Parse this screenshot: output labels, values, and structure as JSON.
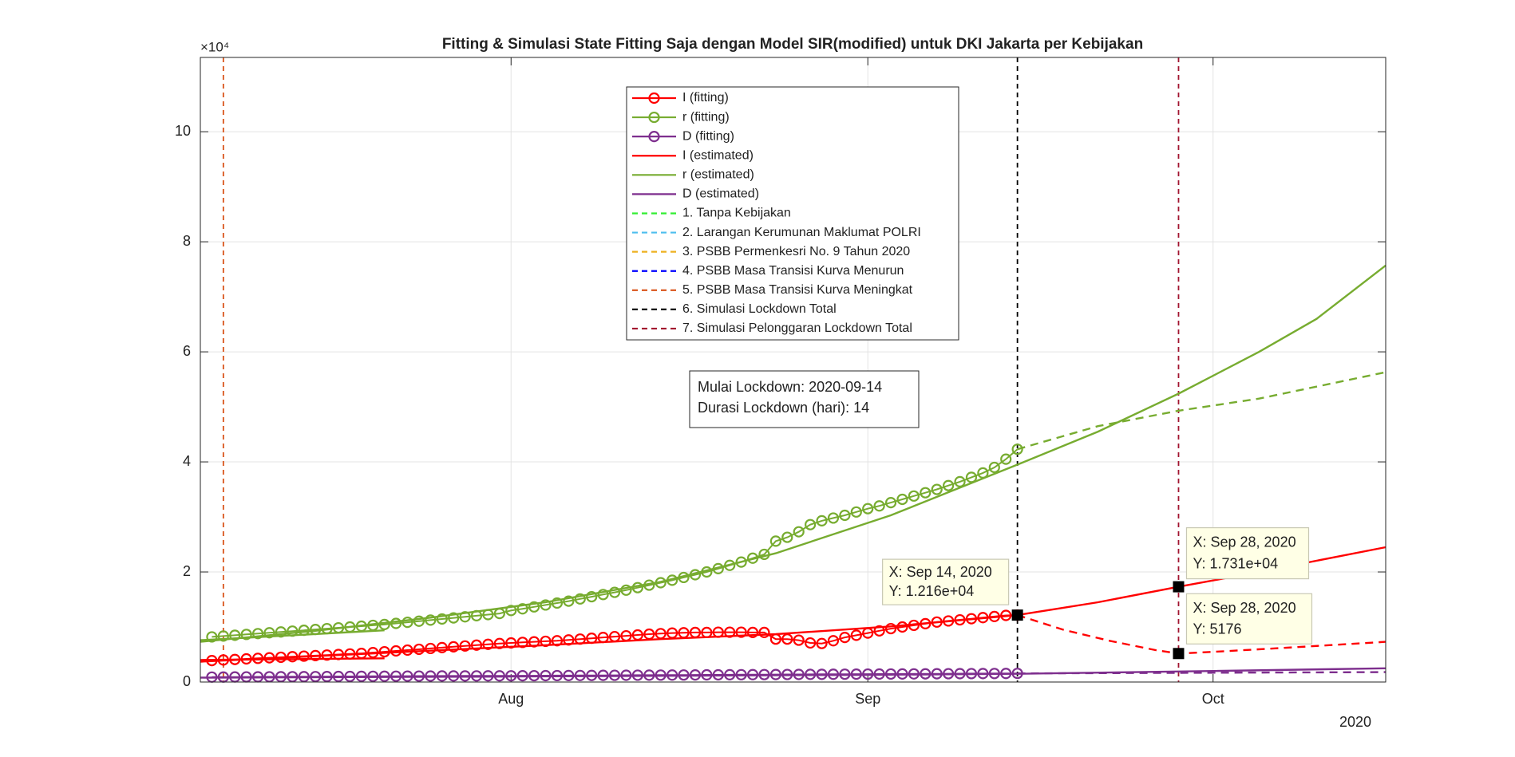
{
  "chart_data": {
    "type": "line",
    "title": "Fitting & Simulasi State Fitting Saja dengan Model SIR(modified) untuk DKI Jakarta per Kebijakan",
    "xlim": [
      "2020-07-05",
      "2020-10-16"
    ],
    "xticks": [
      {
        "value": "2020-08-01",
        "label": "Aug"
      },
      {
        "value": "2020-09-01",
        "label": "Sep"
      },
      {
        "value": "2020-10-01",
        "label": "Oct"
      }
    ],
    "x_secondary_label": "2020",
    "ylim": [
      0,
      113500
    ],
    "yticks": [
      0,
      {
        "value": 20000,
        "label": "2"
      },
      {
        "value": 40000,
        "label": "4"
      },
      {
        "value": 60000,
        "label": "6"
      },
      {
        "value": 80000,
        "label": "8"
      },
      {
        "value": 100000,
        "label": "10"
      }
    ],
    "y_exponent_label": "×10⁴",
    "grid": true,
    "legend_position": "top",
    "x": [
      "2020-07-06",
      "2020-07-07",
      "2020-07-08",
      "2020-07-09",
      "2020-07-10",
      "2020-07-11",
      "2020-07-12",
      "2020-07-13",
      "2020-07-14",
      "2020-07-15",
      "2020-07-16",
      "2020-07-17",
      "2020-07-18",
      "2020-07-19",
      "2020-07-20",
      "2020-07-21",
      "2020-07-22",
      "2020-07-23",
      "2020-07-24",
      "2020-07-25",
      "2020-07-26",
      "2020-07-27",
      "2020-07-28",
      "2020-07-29",
      "2020-07-30",
      "2020-07-31",
      "2020-08-01",
      "2020-08-02",
      "2020-08-03",
      "2020-08-04",
      "2020-08-05",
      "2020-08-06",
      "2020-08-07",
      "2020-08-08",
      "2020-08-09",
      "2020-08-10",
      "2020-08-11",
      "2020-08-12",
      "2020-08-13",
      "2020-08-14",
      "2020-08-15",
      "2020-08-16",
      "2020-08-17",
      "2020-08-18",
      "2020-08-19",
      "2020-08-20",
      "2020-08-21",
      "2020-08-22",
      "2020-08-23",
      "2020-08-24",
      "2020-08-25",
      "2020-08-26",
      "2020-08-27",
      "2020-08-28",
      "2020-08-29",
      "2020-08-30",
      "2020-08-31",
      "2020-09-01",
      "2020-09-02",
      "2020-09-03",
      "2020-09-04",
      "2020-09-05",
      "2020-09-06",
      "2020-09-07",
      "2020-09-08",
      "2020-09-09",
      "2020-09-10",
      "2020-09-11",
      "2020-09-12",
      "2020-09-13",
      "2020-09-14"
    ],
    "series": [
      {
        "name": "I (fitting)",
        "color": "#ff0000",
        "style": "marker",
        "values": [
          3900,
          4000,
          4100,
          4200,
          4300,
          4400,
          4500,
          4600,
          4700,
          4800,
          4900,
          5000,
          5100,
          5200,
          5350,
          5500,
          5650,
          5800,
          5950,
          6100,
          6250,
          6400,
          6550,
          6700,
          6850,
          7000,
          7100,
          7200,
          7300,
          7400,
          7500,
          7650,
          7800,
          7950,
          8100,
          8250,
          8400,
          8550,
          8700,
          8800,
          8900,
          8950,
          9000,
          9000,
          9050,
          9050,
          9050,
          9000,
          9000,
          7800,
          7800,
          7600,
          7100,
          7000,
          7500,
          8100,
          8500,
          8900,
          9300,
          9700,
          10000,
          10300,
          10600,
          10900,
          11100,
          11300,
          11500,
          11700,
          11900,
          12100,
          12160
        ]
      },
      {
        "name": "r (fitting)",
        "color": "#77ac30",
        "style": "marker",
        "values": [
          8200,
          8350,
          8500,
          8650,
          8800,
          8950,
          9100,
          9250,
          9400,
          9550,
          9700,
          9850,
          10000,
          10150,
          10300,
          10450,
          10650,
          10850,
          11050,
          11250,
          11450,
          11650,
          11850,
          12050,
          12250,
          12450,
          13000,
          13300,
          13650,
          14000,
          14350,
          14700,
          15100,
          15500,
          15900,
          16300,
          16700,
          17150,
          17600,
          18050,
          18500,
          19000,
          19500,
          20000,
          20600,
          21200,
          21800,
          22500,
          23200,
          25600,
          26300,
          27300,
          28600,
          29300,
          29800,
          30300,
          30900,
          31500,
          32000,
          32600,
          33200,
          33800,
          34400,
          35000,
          35700,
          36400,
          37200,
          38000,
          39000,
          40500,
          42300
        ]
      },
      {
        "name": "D (fitting)",
        "color": "#7e2f8e",
        "style": "marker",
        "values": [
          900,
          910,
          920,
          930,
          940,
          950,
          960,
          970,
          980,
          990,
          1000,
          1010,
          1020,
          1030,
          1040,
          1050,
          1060,
          1070,
          1080,
          1090,
          1100,
          1105,
          1110,
          1115,
          1120,
          1125,
          1130,
          1140,
          1150,
          1160,
          1170,
          1180,
          1190,
          1200,
          1210,
          1220,
          1230,
          1240,
          1250,
          1260,
          1270,
          1280,
          1290,
          1300,
          1310,
          1320,
          1330,
          1340,
          1350,
          1360,
          1370,
          1380,
          1390,
          1400,
          1410,
          1420,
          1430,
          1440,
          1450,
          1460,
          1470,
          1480,
          1490,
          1500,
          1510,
          1520,
          1530,
          1540,
          1550,
          1560,
          1570
        ]
      },
      {
        "name": "I (estimated)",
        "color": "#ff0000",
        "style": "solid",
        "pieces": [
          {
            "dashed": false,
            "x": [
              "2020-07-05",
              "2020-07-15",
              "2020-07-25",
              "2020-08-04",
              "2020-08-14",
              "2020-08-24",
              "2020-09-03",
              "2020-09-14",
              "2020-09-21",
              "2020-09-28",
              "2020-10-05",
              "2020-10-16"
            ],
            "values": [
              3700,
              4700,
              5700,
              6700,
              7800,
              8700,
              10100,
              12160,
              14500,
              17310,
              20000,
              24500
            ]
          },
          {
            "dashed": false,
            "x": [
              "2020-07-05",
              "2020-07-21"
            ],
            "values": [
              4000,
              4300
            ]
          },
          {
            "dashed": true,
            "x": [
              "2020-09-14",
              "2020-09-18",
              "2020-09-22",
              "2020-09-26",
              "2020-09-28",
              "2020-10-02",
              "2020-10-08",
              "2020-10-16"
            ],
            "values": [
              12160,
              9500,
              7500,
              5800,
              5176,
              5600,
              6300,
              7300
            ]
          }
        ]
      },
      {
        "name": "r (estimated)",
        "color": "#77ac30",
        "style": "solid",
        "pieces": [
          {
            "dashed": false,
            "x": [
              "2020-07-05",
              "2020-07-15",
              "2020-07-25",
              "2020-08-04",
              "2020-08-14",
              "2020-08-24",
              "2020-09-03",
              "2020-09-14",
              "2020-09-21",
              "2020-09-28",
              "2020-10-05",
              "2020-10-10",
              "2020-10-16"
            ],
            "values": [
              7300,
              9300,
              11700,
              14500,
              18200,
              23400,
              30300,
              39500,
              45500,
              52400,
              60000,
              66000,
              75700
            ]
          },
          {
            "dashed": false,
            "x": [
              "2020-07-05",
              "2020-07-21"
            ],
            "values": [
              7600,
              9400
            ]
          },
          {
            "dashed": true,
            "x": [
              "2020-09-14",
              "2020-09-21",
              "2020-09-28",
              "2020-10-05",
              "2020-10-16"
            ],
            "values": [
              42300,
              46500,
              49300,
              51500,
              56300
            ]
          }
        ]
      },
      {
        "name": "D (estimated)",
        "color": "#7e2f8e",
        "style": "solid",
        "pieces": [
          {
            "dashed": false,
            "x": [
              "2020-07-05",
              "2020-08-01",
              "2020-09-01",
              "2020-09-14",
              "2020-10-01",
              "2020-10-16"
            ],
            "values": [
              800,
              1000,
              1300,
              1500,
              2000,
              2500
            ]
          },
          {
            "dashed": true,
            "x": [
              "2020-09-14",
              "2020-10-16"
            ],
            "values": [
              1570,
              1800
            ]
          }
        ]
      }
    ],
    "policies": [
      {
        "name": "1. Tanpa Kebijakan",
        "color": "#33ee33",
        "x": null
      },
      {
        "name": "2. Larangan Kerumunan Maklumat POLRI",
        "color": "#4dbeee",
        "x": null
      },
      {
        "name": "3. PSBB Permenkesri No. 9 Tahun 2020",
        "color": "#edb120",
        "x": null
      },
      {
        "name": "4. PSBB Masa Transisi Kurva Menurun",
        "color": "#0000ff",
        "x": null
      },
      {
        "name": "5. PSBB Masa Transisi Kurva Meningkat",
        "color": "#d95319",
        "x": "2020-07-07"
      },
      {
        "name": "6. Simulasi Lockdown Total",
        "color": "#000000",
        "x": "2020-09-14"
      },
      {
        "name": "7. Simulasi Pelonggaran Lockdown Total",
        "color": "#a2142f",
        "x": "2020-09-28"
      }
    ],
    "annotations": [
      "Mulai Lockdown: 2020-09-14",
      "Durasi Lockdown (hari): 14"
    ],
    "datatips": [
      {
        "x": "2020-09-14",
        "value": 12160,
        "label_x": "X: Sep 14, 2020",
        "label_y": "Y: 1.216e+04"
      },
      {
        "x": "2020-09-28",
        "value": 17310,
        "label_x": "X: Sep 28, 2020",
        "label_y": "Y: 1.731e+04"
      },
      {
        "x": "2020-09-28",
        "value": 5176,
        "label_x": "X: Sep 28, 2020",
        "label_y": "Y: 5176"
      }
    ]
  }
}
